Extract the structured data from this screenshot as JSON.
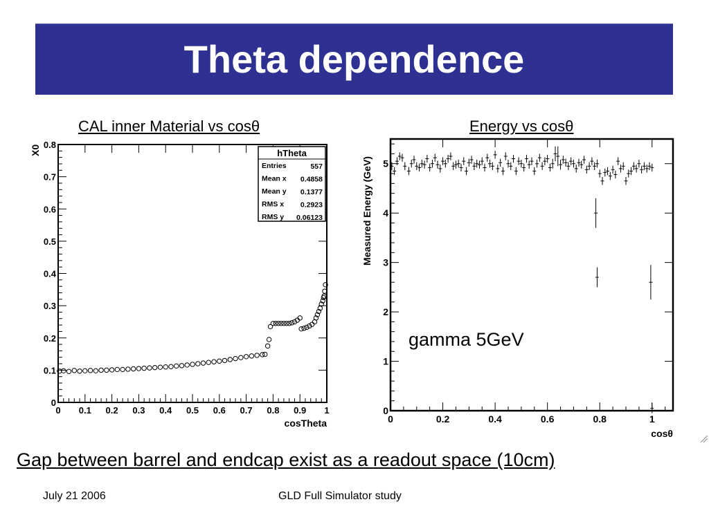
{
  "slide": {
    "title": "Theta dependence",
    "subtitle_left": "CAL inner Material vs cosθ",
    "subtitle_right": "Energy vs cosθ",
    "caption": "Gap between barrel and endcap exist as a readout space (10cm)",
    "footer_date": "July 21 2006",
    "footer_center": "GLD Full Simulator study",
    "title_bg": "#2e3192"
  },
  "chart_data": [
    {
      "type": "scatter",
      "ylabel": "X0",
      "xlabel": "cosTheta",
      "xlim": [
        0,
        1
      ],
      "ylim": [
        0,
        0.8
      ],
      "x_ticks": [
        "0",
        "0.1",
        "0.2",
        "0.3",
        "0.4",
        "0.5",
        "0.6",
        "0.7",
        "0.8",
        "0.9",
        "1"
      ],
      "y_ticks": [
        "0",
        "0.1",
        "0.2",
        "0.3",
        "0.4",
        "0.5",
        "0.6",
        "0.7",
        "0.8"
      ],
      "marker": "open-circle",
      "grid": false,
      "stats_box": {
        "title": "hTheta",
        "rows": [
          {
            "label": "Entries",
            "value": "557"
          },
          {
            "label": "Mean x",
            "value": "0.4858"
          },
          {
            "label": "Mean y",
            "value": "0.1377"
          },
          {
            "label": "RMS x",
            "value": "0.2923"
          },
          {
            "label": "RMS y",
            "value": "0.06123"
          }
        ],
        "placement": "top-right"
      },
      "points": [
        [
          0.005,
          0.097
        ],
        [
          0.02,
          0.098
        ],
        [
          0.04,
          0.096
        ],
        [
          0.06,
          0.099
        ],
        [
          0.08,
          0.097
        ],
        [
          0.1,
          0.098
        ],
        [
          0.12,
          0.099
        ],
        [
          0.14,
          0.098
        ],
        [
          0.16,
          0.1
        ],
        [
          0.18,
          0.1
        ],
        [
          0.2,
          0.101
        ],
        [
          0.22,
          0.102
        ],
        [
          0.24,
          0.102
        ],
        [
          0.26,
          0.103
        ],
        [
          0.28,
          0.104
        ],
        [
          0.3,
          0.105
        ],
        [
          0.32,
          0.106
        ],
        [
          0.34,
          0.107
        ],
        [
          0.36,
          0.108
        ],
        [
          0.38,
          0.109
        ],
        [
          0.4,
          0.11
        ],
        [
          0.42,
          0.111
        ],
        [
          0.44,
          0.113
        ],
        [
          0.46,
          0.114
        ],
        [
          0.48,
          0.116
        ],
        [
          0.5,
          0.118
        ],
        [
          0.52,
          0.12
        ],
        [
          0.54,
          0.122
        ],
        [
          0.56,
          0.124
        ],
        [
          0.58,
          0.126
        ],
        [
          0.6,
          0.128
        ],
        [
          0.62,
          0.13
        ],
        [
          0.64,
          0.133
        ],
        [
          0.66,
          0.136
        ],
        [
          0.68,
          0.139
        ],
        [
          0.7,
          0.142
        ],
        [
          0.72,
          0.144
        ],
        [
          0.74,
          0.146
        ],
        [
          0.76,
          0.148
        ],
        [
          0.77,
          0.149
        ],
        [
          0.78,
          0.175
        ],
        [
          0.785,
          0.195
        ],
        [
          0.79,
          0.235
        ],
        [
          0.8,
          0.245
        ],
        [
          0.81,
          0.245
        ],
        [
          0.82,
          0.245
        ],
        [
          0.83,
          0.245
        ],
        [
          0.84,
          0.245
        ],
        [
          0.85,
          0.245
        ],
        [
          0.86,
          0.245
        ],
        [
          0.87,
          0.247
        ],
        [
          0.88,
          0.25
        ],
        [
          0.89,
          0.255
        ],
        [
          0.9,
          0.262
        ],
        [
          0.905,
          0.228
        ],
        [
          0.915,
          0.23
        ],
        [
          0.925,
          0.233
        ],
        [
          0.935,
          0.237
        ],
        [
          0.945,
          0.242
        ],
        [
          0.955,
          0.25
        ],
        [
          0.96,
          0.262
        ],
        [
          0.965,
          0.272
        ],
        [
          0.97,
          0.282
        ],
        [
          0.975,
          0.292
        ],
        [
          0.98,
          0.305
        ],
        [
          0.985,
          0.315
        ],
        [
          0.988,
          0.325
        ],
        [
          0.99,
          0.33
        ],
        [
          0.992,
          0.345
        ],
        [
          0.995,
          0.365
        ]
      ]
    },
    {
      "type": "scatter",
      "ylabel": "Measured Energy (GeV)",
      "xlabel": "cosθ",
      "xlim": [
        0,
        1.08
      ],
      "ylim": [
        0,
        5.5
      ],
      "x_ticks": [
        "0",
        "0.2",
        "0.4",
        "0.6",
        "0.8",
        "1"
      ],
      "y_ticks": [
        "0",
        "1",
        "2",
        "3",
        "4",
        "5"
      ],
      "marker": "cross-with-error-bars",
      "grid": false,
      "annotation": "gamma 5GeV",
      "points": [
        [
          0.005,
          4.95,
          0.08
        ],
        [
          0.015,
          4.85,
          0.08
        ],
        [
          0.025,
          5.05,
          0.08
        ],
        [
          0.035,
          5.15,
          0.08
        ],
        [
          0.045,
          5.12,
          0.08
        ],
        [
          0.055,
          4.95,
          0.08
        ],
        [
          0.07,
          4.85,
          0.08
        ],
        [
          0.08,
          5.0,
          0.08
        ],
        [
          0.09,
          5.08,
          0.08
        ],
        [
          0.1,
          4.95,
          0.08
        ],
        [
          0.11,
          4.92,
          0.08
        ],
        [
          0.12,
          5.0,
          0.08
        ],
        [
          0.13,
          4.98,
          0.08
        ],
        [
          0.14,
          5.1,
          0.08
        ],
        [
          0.15,
          4.92,
          0.08
        ],
        [
          0.16,
          5.0,
          0.08
        ],
        [
          0.17,
          5.12,
          0.08
        ],
        [
          0.18,
          4.98,
          0.08
        ],
        [
          0.19,
          4.9,
          0.08
        ],
        [
          0.2,
          5.05,
          0.08
        ],
        [
          0.21,
          5.0,
          0.08
        ],
        [
          0.22,
          5.1,
          0.08
        ],
        [
          0.23,
          5.15,
          0.08
        ],
        [
          0.24,
          4.95,
          0.08
        ],
        [
          0.25,
          4.98,
          0.08
        ],
        [
          0.26,
          5.0,
          0.08
        ],
        [
          0.27,
          4.92,
          0.08
        ],
        [
          0.28,
          5.05,
          0.08
        ],
        [
          0.29,
          4.85,
          0.08
        ],
        [
          0.3,
          5.02,
          0.08
        ],
        [
          0.31,
          5.08,
          0.08
        ],
        [
          0.32,
          4.95,
          0.08
        ],
        [
          0.33,
          5.0,
          0.08
        ],
        [
          0.34,
          4.98,
          0.08
        ],
        [
          0.35,
          5.05,
          0.08
        ],
        [
          0.36,
          4.92,
          0.08
        ],
        [
          0.37,
          5.12,
          0.08
        ],
        [
          0.38,
          5.0,
          0.08
        ],
        [
          0.39,
          4.95,
          0.08
        ],
        [
          0.4,
          5.18,
          0.08
        ],
        [
          0.41,
          4.9,
          0.08
        ],
        [
          0.42,
          5.02,
          0.08
        ],
        [
          0.43,
          4.85,
          0.08
        ],
        [
          0.44,
          5.15,
          0.08
        ],
        [
          0.45,
          5.0,
          0.08
        ],
        [
          0.46,
          4.95,
          0.08
        ],
        [
          0.47,
          5.1,
          0.08
        ],
        [
          0.48,
          4.85,
          0.08
        ],
        [
          0.49,
          5.05,
          0.08
        ],
        [
          0.5,
          5.0,
          0.08
        ],
        [
          0.51,
          4.92,
          0.08
        ],
        [
          0.52,
          5.1,
          0.08
        ],
        [
          0.53,
          4.98,
          0.08
        ],
        [
          0.54,
          5.05,
          0.08
        ],
        [
          0.55,
          4.85,
          0.08
        ],
        [
          0.56,
          5.0,
          0.08
        ],
        [
          0.57,
          5.12,
          0.08
        ],
        [
          0.58,
          4.95,
          0.08
        ],
        [
          0.59,
          5.05,
          0.08
        ],
        [
          0.6,
          5.1,
          0.08
        ],
        [
          0.61,
          4.92,
          0.08
        ],
        [
          0.62,
          5.0,
          0.1
        ],
        [
          0.63,
          5.2,
          0.15
        ],
        [
          0.64,
          5.15,
          0.2
        ],
        [
          0.65,
          4.98,
          0.1
        ],
        [
          0.66,
          5.08,
          0.08
        ],
        [
          0.67,
          5.02,
          0.08
        ],
        [
          0.68,
          4.95,
          0.08
        ],
        [
          0.69,
          5.05,
          0.08
        ],
        [
          0.7,
          5.0,
          0.08
        ],
        [
          0.71,
          4.9,
          0.08
        ],
        [
          0.72,
          5.02,
          0.08
        ],
        [
          0.73,
          4.98,
          0.08
        ],
        [
          0.74,
          5.08,
          0.08
        ],
        [
          0.75,
          4.88,
          0.08
        ],
        [
          0.76,
          4.95,
          0.08
        ],
        [
          0.77,
          5.05,
          0.08
        ],
        [
          0.78,
          4.95,
          0.08
        ],
        [
          0.79,
          5.0,
          0.08
        ],
        [
          0.8,
          4.8,
          0.08
        ],
        [
          0.81,
          4.65,
          0.08
        ],
        [
          0.82,
          4.82,
          0.08
        ],
        [
          0.83,
          4.85,
          0.08
        ],
        [
          0.84,
          4.75,
          0.08
        ],
        [
          0.85,
          4.88,
          0.08
        ],
        [
          0.86,
          4.78,
          0.08
        ],
        [
          0.87,
          5.05,
          0.08
        ],
        [
          0.88,
          4.9,
          0.08
        ],
        [
          0.89,
          4.95,
          0.08
        ],
        [
          0.9,
          4.65,
          0.08
        ],
        [
          0.91,
          4.8,
          0.08
        ],
        [
          0.92,
          4.85,
          0.08
        ],
        [
          0.93,
          4.95,
          0.08
        ],
        [
          0.94,
          4.9,
          0.08
        ],
        [
          0.95,
          5.0,
          0.08
        ],
        [
          0.96,
          4.88,
          0.08
        ],
        [
          0.97,
          4.95,
          0.08
        ],
        [
          0.98,
          4.9,
          0.08
        ],
        [
          0.99,
          4.95,
          0.08
        ],
        [
          1.0,
          4.92,
          0.08
        ],
        [
          0.785,
          4.0,
          0.3
        ],
        [
          0.79,
          2.7,
          0.2
        ],
        [
          0.995,
          2.6,
          0.35
        ],
        [
          1.0,
          0.05,
          0.1
        ]
      ]
    }
  ]
}
